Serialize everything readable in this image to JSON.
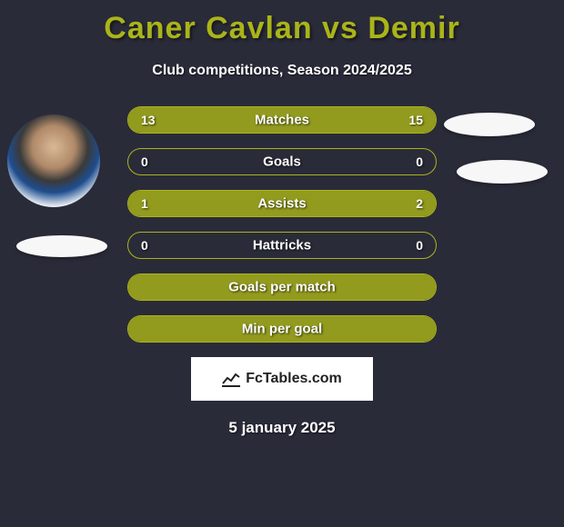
{
  "title": "Caner Cavlan vs Demir",
  "subtitle": "Club competitions, Season 2024/2025",
  "date": "5 january 2025",
  "logo_text": "FcTables.com",
  "colors": {
    "bar_border": "#aab419",
    "bar_fill": "#aab419",
    "background": "#2a2b39",
    "title_color": "#aab419",
    "text_color": "#ffffff",
    "logo_bg": "#ffffff"
  },
  "fonts": {
    "title_size": 34,
    "subtitle_size": 16,
    "bar_label_size": 15,
    "bar_value_size": 14,
    "date_size": 17
  },
  "bars": [
    {
      "label": "Matches",
      "left": "13",
      "right": "15",
      "left_pct": 46,
      "right_pct": 54
    },
    {
      "label": "Goals",
      "left": "0",
      "right": "0",
      "left_pct": 0,
      "right_pct": 0
    },
    {
      "label": "Assists",
      "left": "1",
      "right": "2",
      "left_pct": 33,
      "right_pct": 67
    },
    {
      "label": "Hattricks",
      "left": "0",
      "right": "0",
      "left_pct": 0,
      "right_pct": 0
    },
    {
      "label": "Goals per match",
      "left": "",
      "right": "",
      "left_pct": 100,
      "right_pct": 0,
      "full": true
    },
    {
      "label": "Min per goal",
      "left": "",
      "right": "",
      "left_pct": 100,
      "right_pct": 0,
      "full": true
    }
  ]
}
